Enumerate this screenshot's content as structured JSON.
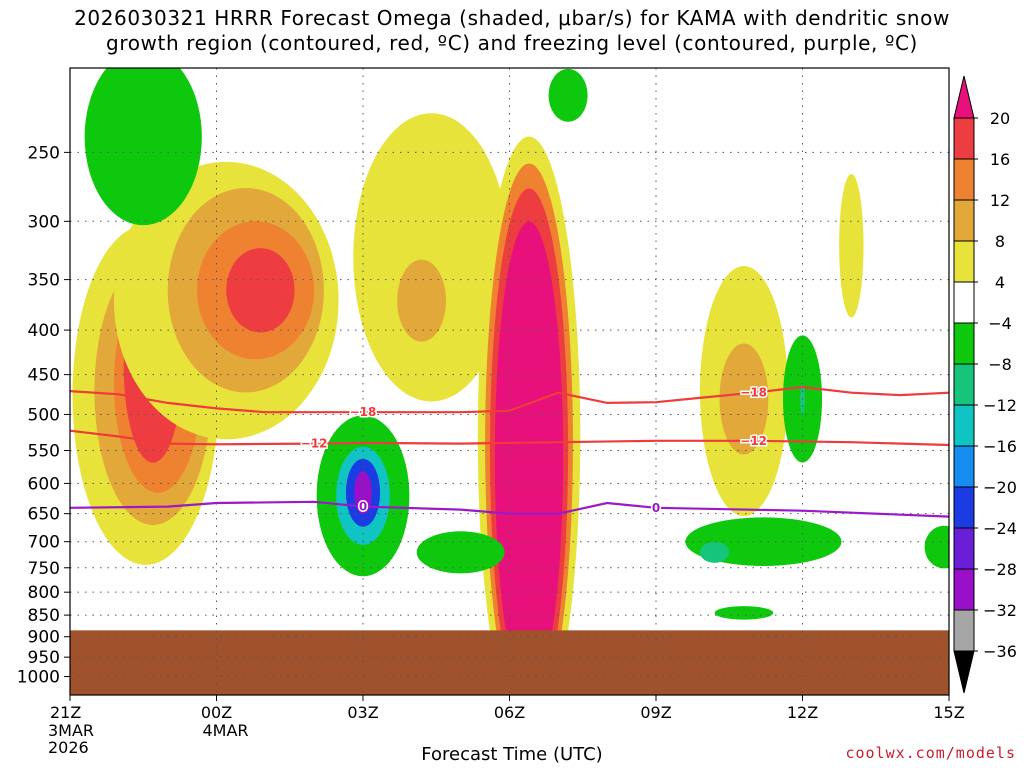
{
  "title": {
    "line1": "2026030321 HRRR Forecast Omega (shaded, μbar/s) for KAMA with dendritic snow",
    "line2": "growth region (contoured, red, ºC) and freezing level (contoured, purple, ºC)"
  },
  "credit": "coolwx.com/models",
  "chart_data": {
    "type": "heatmap",
    "title": "2026030321 HRRR Forecast Omega (shaded, μbar/s) for KAMA with dendritic snow growth region (contoured, red, ºC) and freezing level (contoured, purple, ºC)",
    "xlabel": "Forecast Time (UTC)",
    "ylabel": "",
    "xlim": [
      0,
      18
    ],
    "ylim_hpa": [
      200,
      1050
    ],
    "y_axis_scale": "log-pressure (inverted)",
    "x_ticks": [
      {
        "x": 0,
        "label": "21Z",
        "sub1": "3MAR",
        "sub2": "2026"
      },
      {
        "x": 3,
        "label": "00Z",
        "sub1": "4MAR",
        "sub2": ""
      },
      {
        "x": 6,
        "label": "03Z",
        "sub1": "",
        "sub2": ""
      },
      {
        "x": 9,
        "label": "06Z",
        "sub1": "",
        "sub2": ""
      },
      {
        "x": 12,
        "label": "09Z",
        "sub1": "",
        "sub2": ""
      },
      {
        "x": 15,
        "label": "12Z",
        "sub1": "",
        "sub2": ""
      },
      {
        "x": 18,
        "label": "15Z",
        "sub1": "",
        "sub2": ""
      }
    ],
    "y_ticks": [
      "250",
      "300",
      "350",
      "400",
      "450",
      "500",
      "550",
      "600",
      "650",
      "700",
      "750",
      "800",
      "850",
      "900",
      "950",
      "1000"
    ],
    "colorbar": {
      "labels": [
        "20",
        "16",
        "12",
        "8",
        "4",
        "−4",
        "−8",
        "−12",
        "−16",
        "−20",
        "−24",
        "−28",
        "−32",
        "−36"
      ],
      "bins": [
        {
          "range": "20+",
          "color": "#e8107a"
        },
        {
          "range": "16..20",
          "color": "#ee3d40"
        },
        {
          "range": "12..16",
          "color": "#ef8230"
        },
        {
          "range": "8..12",
          "color": "#e2a93a"
        },
        {
          "range": "4..8",
          "color": "#e8e33a"
        },
        {
          "range": "-4..4",
          "color": "#ffffff"
        },
        {
          "range": "-8..-4",
          "color": "#0ec80e"
        },
        {
          "range": "-12..-8",
          "color": "#17c47c"
        },
        {
          "range": "-16..-12",
          "color": "#10c4c4"
        },
        {
          "range": "-20..-16",
          "color": "#158ef0"
        },
        {
          "range": "-24..-20",
          "color": "#1b3ce2"
        },
        {
          "range": "-28..-24",
          "color": "#6a1ed8"
        },
        {
          "range": "-32..-28",
          "color": "#9910c8"
        },
        {
          "range": "-36..-32",
          "color": "#a6a6a6"
        },
        {
          "range": "<-36",
          "color": "#000000"
        }
      ]
    },
    "ground_color": "#a0522d",
    "ground_pressure_hpa": 885,
    "contours": [
      {
        "name": "dendritic-minus18",
        "label": "−18",
        "label2": "−18",
        "color": "#ee3b3b",
        "points": [
          [
            0,
            470
          ],
          [
            1,
            474
          ],
          [
            2,
            485
          ],
          [
            3,
            492
          ],
          [
            4,
            497
          ],
          [
            6,
            497
          ],
          [
            8,
            497
          ],
          [
            9,
            495
          ],
          [
            10,
            472
          ],
          [
            11,
            485
          ],
          [
            12,
            484
          ],
          [
            13,
            478
          ],
          [
            14,
            472
          ],
          [
            15,
            465
          ],
          [
            16,
            472
          ],
          [
            17,
            475
          ],
          [
            18,
            472
          ]
        ]
      },
      {
        "name": "dendritic-minus12",
        "label": "−12",
        "label2": "−12",
        "color": "#ee3b3b",
        "points": [
          [
            0,
            522
          ],
          [
            1,
            530
          ],
          [
            2,
            540
          ],
          [
            3,
            541
          ],
          [
            5,
            540
          ],
          [
            6,
            539
          ],
          [
            8,
            540
          ],
          [
            10,
            538
          ],
          [
            12,
            536
          ],
          [
            14,
            536
          ],
          [
            16,
            538
          ],
          [
            18,
            542
          ]
        ]
      },
      {
        "name": "freezing-level-0",
        "label": "0",
        "label2": "0",
        "color": "#9a1ac8",
        "points": [
          [
            0,
            640
          ],
          [
            2,
            638
          ],
          [
            3,
            632
          ],
          [
            5,
            630
          ],
          [
            6,
            638
          ],
          [
            8,
            643
          ],
          [
            9,
            650
          ],
          [
            10,
            650
          ],
          [
            11,
            632
          ],
          [
            12,
            640
          ],
          [
            15,
            645
          ],
          [
            18,
            655
          ]
        ]
      }
    ],
    "regions": [
      {
        "x": 1.55,
        "p": 475,
        "rx": 1.5,
        "rp": 200,
        "v": 7,
        "note": "ascent plume left"
      },
      {
        "x": 1.7,
        "p": 470,
        "rx": 1.2,
        "rp": 160,
        "v": 11
      },
      {
        "x": 1.8,
        "p": 460,
        "rx": 0.9,
        "rp": 130,
        "v": 15
      },
      {
        "x": 1.7,
        "p": 440,
        "rx": 0.6,
        "rp": 110,
        "v": 19
      },
      {
        "x": 3.2,
        "p": 370,
        "rx": 2.3,
        "rp": 130,
        "v": 6
      },
      {
        "x": 3.6,
        "p": 360,
        "rx": 1.6,
        "rp": 95,
        "v": 10
      },
      {
        "x": 3.8,
        "p": 360,
        "rx": 1.2,
        "rp": 65,
        "v": 14
      },
      {
        "x": 3.9,
        "p": 360,
        "rx": 0.7,
        "rp": 40,
        "v": 19
      },
      {
        "x": 7.4,
        "p": 330,
        "rx": 1.6,
        "rp": 120,
        "v": 5
      },
      {
        "x": 7.2,
        "p": 370,
        "rx": 0.5,
        "rp": 40,
        "v": 9
      },
      {
        "x": 9.4,
        "p": 530,
        "rx": 1.05,
        "rp": 350,
        "v": 7
      },
      {
        "x": 9.4,
        "p": 540,
        "rx": 0.9,
        "rp": 340,
        "v": 12
      },
      {
        "x": 9.4,
        "p": 550,
        "rx": 0.8,
        "rp": 330,
        "v": 17
      },
      {
        "x": 9.4,
        "p": 560,
        "rx": 0.7,
        "rp": 310,
        "v": 21
      },
      {
        "x": 13.8,
        "p": 470,
        "rx": 0.9,
        "rp": 150,
        "v": 5
      },
      {
        "x": 13.8,
        "p": 480,
        "rx": 0.5,
        "rp": 70,
        "v": 9
      },
      {
        "x": 16.0,
        "p": 320,
        "rx": 0.25,
        "rp": 60,
        "v": 5
      },
      {
        "x": 6.0,
        "p": 620,
        "rx": 0.95,
        "rp": 130,
        "v": -5
      },
      {
        "x": 6.0,
        "p": 620,
        "rx": 0.55,
        "rp": 80,
        "v": -13
      },
      {
        "x": 6.0,
        "p": 615,
        "rx": 0.35,
        "rp": 55,
        "v": -21
      },
      {
        "x": 6.0,
        "p": 615,
        "rx": 0.18,
        "rp": 35,
        "v": -30
      },
      {
        "x": 1.5,
        "p": 240,
        "rx": 1.2,
        "rp": 55,
        "v": -5
      },
      {
        "x": 10.2,
        "p": 215,
        "rx": 0.4,
        "rp": 15,
        "v": -5
      },
      {
        "x": 15.0,
        "p": 480,
        "rx": 0.4,
        "rp": 80,
        "v": -5
      },
      {
        "x": 15.0,
        "p": 480,
        "rx": 0.05,
        "rp": 20,
        "v": -10
      },
      {
        "x": 14.2,
        "p": 700,
        "rx": 1.6,
        "rp": 45,
        "v": -5
      },
      {
        "x": 13.2,
        "p": 720,
        "rx": 0.3,
        "rp": 20,
        "v": -9
      },
      {
        "x": 8.0,
        "p": 720,
        "rx": 0.9,
        "rp": 40,
        "v": -5
      },
      {
        "x": 13.8,
        "p": 845,
        "rx": 0.6,
        "rp": 15,
        "v": -5
      },
      {
        "x": 17.9,
        "p": 710,
        "rx": 0.4,
        "rp": 40,
        "v": -5
      }
    ]
  }
}
